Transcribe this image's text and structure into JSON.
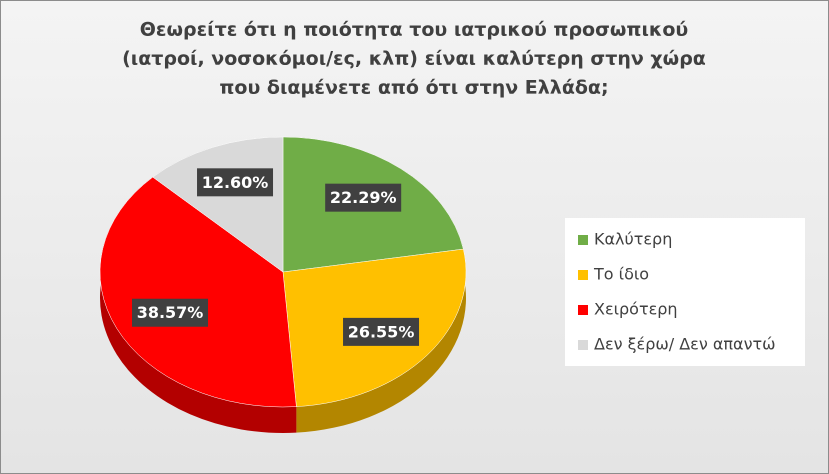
{
  "chart_data": {
    "type": "pie",
    "title": [
      "Θεωρείτε ότι η ποιότητα του ιατρικού προσωπικού",
      "(ιατροί, νοσοκόμοι/ες, κλπ) είναι καλύτερη στην χώρα",
      "που διαμένετε από ότι στην Ελλάδα;"
    ],
    "categories": [
      "Καλύτερη",
      "Το ίδιο",
      "Χειρότερη",
      "Δεν ξέρω/ Δεν απαντώ"
    ],
    "values": [
      22.29,
      26.55,
      38.57,
      12.6
    ],
    "value_labels": [
      "22.29%",
      "26.55%",
      "38.57%",
      "12.60%"
    ],
    "colors": [
      "#70ad47",
      "#ffc000",
      "#ff0000",
      "#d9d9d9"
    ],
    "legend": "right"
  }
}
